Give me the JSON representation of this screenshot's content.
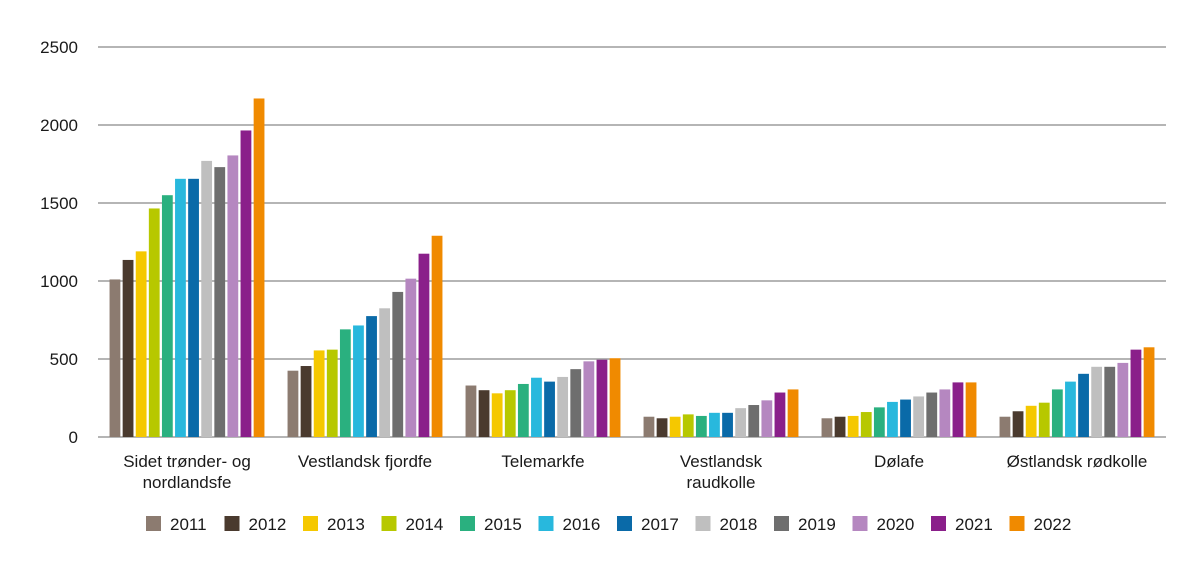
{
  "chart_data": {
    "type": "bar",
    "title": "",
    "xlabel": "",
    "ylabel": "",
    "ylim": [
      0,
      2500
    ],
    "yticks": [
      0,
      500,
      1000,
      1500,
      2000,
      2500
    ],
    "grid": true,
    "legend_position": "bottom",
    "categories": [
      [
        "Sidet trønder- og",
        "nordlandsfe"
      ],
      [
        "Vestlandsk fjordfe"
      ],
      [
        "Telemarkfe"
      ],
      [
        "Vestlandsk",
        "raudkolle"
      ],
      [
        "Dølafe"
      ],
      [
        "Østlandsk rødkolle"
      ]
    ],
    "series": [
      {
        "name": "2011",
        "color": "#8c7b70",
        "values": [
          1010,
          425,
          330,
          130,
          120,
          130
        ]
      },
      {
        "name": "2012",
        "color": "#4a3a2e",
        "values": [
          1135,
          455,
          300,
          120,
          130,
          165
        ]
      },
      {
        "name": "2013",
        "color": "#f5c800",
        "values": [
          1190,
          555,
          280,
          130,
          135,
          200
        ]
      },
      {
        "name": "2014",
        "color": "#b7c800",
        "values": [
          1465,
          560,
          300,
          145,
          160,
          220
        ]
      },
      {
        "name": "2015",
        "color": "#2ab07f",
        "values": [
          1550,
          690,
          340,
          135,
          190,
          305
        ]
      },
      {
        "name": "2016",
        "color": "#28b8dd",
        "values": [
          1655,
          715,
          380,
          155,
          225,
          355
        ]
      },
      {
        "name": "2017",
        "color": "#0a6aa8",
        "values": [
          1655,
          775,
          355,
          155,
          240,
          405
        ]
      },
      {
        "name": "2018",
        "color": "#bfbfbf",
        "values": [
          1770,
          825,
          385,
          185,
          260,
          450
        ]
      },
      {
        "name": "2019",
        "color": "#6e6e6e",
        "values": [
          1730,
          930,
          435,
          205,
          285,
          450
        ]
      },
      {
        "name": "2020",
        "color": "#b587c0",
        "values": [
          1805,
          1015,
          485,
          235,
          305,
          475
        ]
      },
      {
        "name": "2021",
        "color": "#8a1f8a",
        "values": [
          1965,
          1175,
          495,
          285,
          350,
          560
        ]
      },
      {
        "name": "2022",
        "color": "#f08a00",
        "values": [
          2170,
          1290,
          505,
          305,
          350,
          575
        ]
      }
    ]
  }
}
